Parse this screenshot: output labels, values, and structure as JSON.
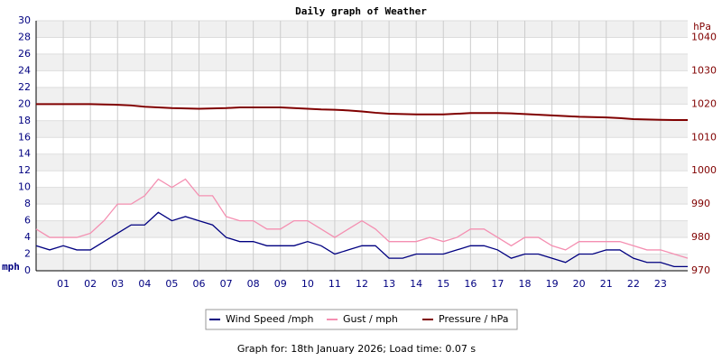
{
  "chart_data": {
    "type": "line",
    "title": "Daily graph of Weather",
    "footer": "Graph for: 18th January 2026; Load time: 0.07 s",
    "ylabel": "mph",
    "y2label": "hPa",
    "x": [
      0,
      0.5,
      1,
      1.5,
      2,
      2.5,
      3,
      3.5,
      4,
      4.5,
      5,
      5.5,
      6,
      6.5,
      7,
      7.5,
      8,
      8.5,
      9,
      9.5,
      10,
      10.5,
      11,
      11.5,
      12,
      12.5,
      13,
      13.5,
      14,
      14.5,
      15,
      15.5,
      16,
      16.5,
      17,
      17.5,
      18,
      18.5,
      19,
      19.5,
      20,
      20.5,
      21,
      21.5,
      22,
      22.5,
      23,
      23.5,
      24
    ],
    "xlim": [
      0,
      24
    ],
    "xticks": [
      {
        "value": 1,
        "label": "01"
      },
      {
        "value": 2,
        "label": "02"
      },
      {
        "value": 3,
        "label": "03"
      },
      {
        "value": 4,
        "label": "04"
      },
      {
        "value": 5,
        "label": "05"
      },
      {
        "value": 6,
        "label": "06"
      },
      {
        "value": 7,
        "label": "07"
      },
      {
        "value": 8,
        "label": "08"
      },
      {
        "value": 9,
        "label": "09"
      },
      10,
      11,
      12,
      13,
      14,
      15,
      16,
      17,
      18,
      19,
      20,
      21,
      22,
      23
    ],
    "ylim": [
      0,
      30
    ],
    "yticks": [
      0,
      2,
      4,
      6,
      8,
      10,
      12,
      14,
      16,
      18,
      20,
      22,
      24,
      26,
      28,
      30
    ],
    "y2lim": [
      970,
      1045
    ],
    "y2ticks": [
      970,
      980,
      990,
      1000,
      1010,
      1020,
      1030,
      1040
    ],
    "grid": true,
    "series": [
      {
        "name": "Gust / mph",
        "color": "#f48fb1",
        "values": [
          5,
          4,
          4,
          4,
          4.5,
          6,
          8,
          8,
          9,
          11,
          10,
          11,
          9,
          9,
          6.5,
          6,
          6,
          5,
          5,
          6,
          6,
          5,
          4,
          5,
          6,
          5,
          3.5,
          3.5,
          3.5,
          4,
          3.5,
          4,
          5,
          5,
          4,
          3,
          4,
          4,
          3,
          2.5,
          3.5,
          3.5,
          3.5,
          3.5,
          3,
          2.5,
          2.5,
          2,
          1.5
        ]
      },
      {
        "name": "Wind Speed /mph",
        "color": "#000080",
        "values": [
          3,
          2.5,
          3,
          2.5,
          2.5,
          3.5,
          4.5,
          5.5,
          5.5,
          7,
          6,
          6.5,
          6,
          5.5,
          4,
          3.5,
          3.5,
          3,
          3,
          3,
          3.5,
          3,
          2,
          2.5,
          3,
          3,
          1.5,
          1.5,
          2,
          2,
          2,
          2.5,
          3,
          3,
          2.5,
          1.5,
          2,
          2,
          1.5,
          1,
          2,
          2,
          2.5,
          2.5,
          1.5,
          1,
          1,
          0.5,
          0.5
        ]
      },
      {
        "name": "Pressure / hPa",
        "color": "#800000",
        "axis": "y2",
        "values": [
          1020,
          1020,
          1020,
          1020,
          1020,
          1019.9,
          1019.8,
          1019.6,
          1019.2,
          1019,
          1018.8,
          1018.7,
          1018.6,
          1018.7,
          1018.8,
          1019,
          1019,
          1019,
          1019,
          1018.8,
          1018.6,
          1018.4,
          1018.3,
          1018.1,
          1017.8,
          1017.4,
          1017.1,
          1017,
          1016.9,
          1016.9,
          1016.9,
          1017.1,
          1017.3,
          1017.3,
          1017.3,
          1017.2,
          1017,
          1016.8,
          1016.6,
          1016.4,
          1016.2,
          1016.1,
          1016,
          1015.8,
          1015.5,
          1015.4,
          1015.3,
          1015.2,
          1015.2
        ]
      }
    ]
  }
}
